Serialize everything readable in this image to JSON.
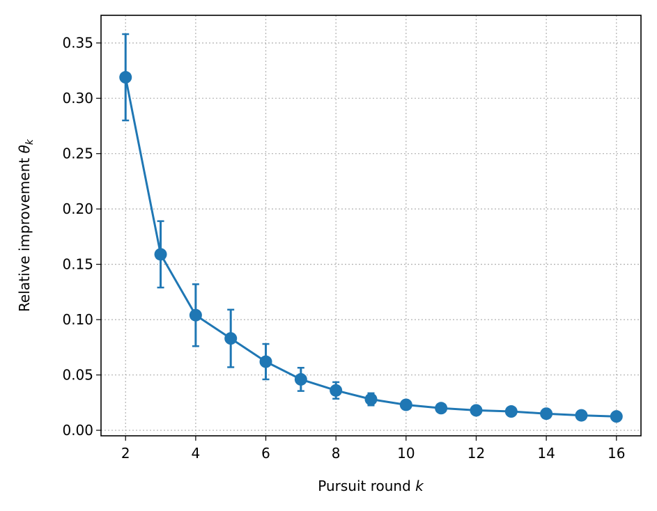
{
  "chart_data": {
    "type": "line",
    "xlabel": "Pursuit round",
    "xlabel_var": "k",
    "ylabel": "Relative improvement",
    "ylabel_var": "θ",
    "ylabel_sub": "k",
    "xlim": [
      1.3,
      16.7
    ],
    "ylim": [
      -0.005,
      0.375
    ],
    "xticks": [
      2,
      4,
      6,
      8,
      10,
      12,
      14,
      16
    ],
    "xtick_labels": [
      "2",
      "4",
      "6",
      "8",
      "10",
      "12",
      "14",
      "16"
    ],
    "yticks": [
      0.0,
      0.05,
      0.1,
      0.15,
      0.2,
      0.25,
      0.3,
      0.35
    ],
    "ytick_labels": [
      "0.00",
      "0.05",
      "0.10",
      "0.15",
      "0.20",
      "0.25",
      "0.30",
      "0.35"
    ],
    "grid": true,
    "series": [
      {
        "color": "#1f77b4",
        "x": [
          2,
          3,
          4,
          5,
          6,
          7,
          8,
          9,
          10,
          11,
          12,
          13,
          14,
          15,
          16
        ],
        "y": [
          0.319,
          0.159,
          0.104,
          0.083,
          0.062,
          0.046,
          0.036,
          0.028,
          0.023,
          0.02,
          0.018,
          0.017,
          0.015,
          0.0135,
          0.0125
        ],
        "yerr": [
          0.039,
          0.03,
          0.028,
          0.026,
          0.016,
          0.0105,
          0.0075,
          0.0055,
          0.0015,
          0.0015,
          0.0012,
          0.0012,
          0.001,
          0.001,
          0.001
        ]
      }
    ]
  }
}
